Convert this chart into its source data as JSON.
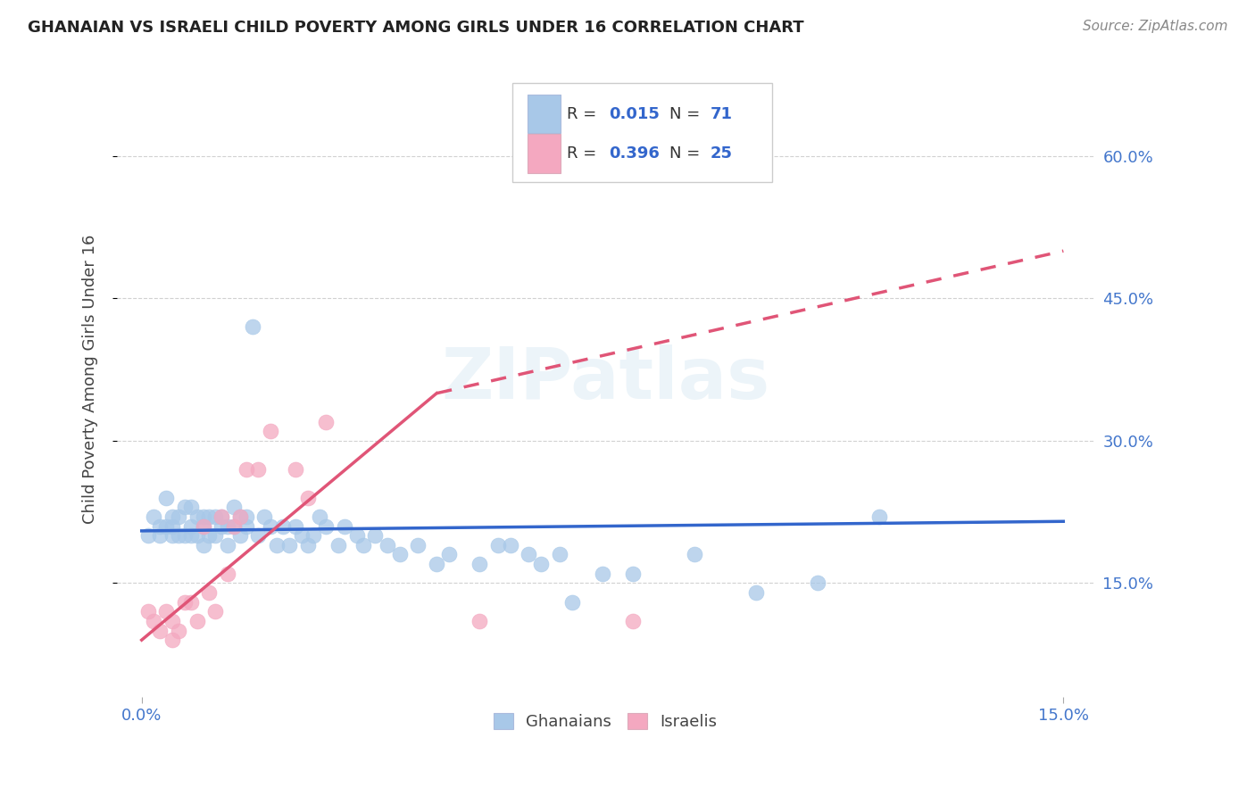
{
  "title": "GHANAIAN VS ISRAELI CHILD POVERTY AMONG GIRLS UNDER 16 CORRELATION CHART",
  "source": "Source: ZipAtlas.com",
  "ylabel": "Child Poverty Among Girls Under 16",
  "R_ghanaian": 0.015,
  "N_ghanaian": 71,
  "R_israeli": 0.396,
  "N_israeli": 25,
  "ghanaian_color": "#a8c8e8",
  "israeli_color": "#f4a8c0",
  "ghanaian_line_color": "#3366cc",
  "israeli_line_color": "#e05577",
  "watermark": "ZIPatlas",
  "xlim": [
    0.0,
    0.15
  ],
  "ylim": [
    0.05,
    0.7
  ],
  "yticks": [
    0.15,
    0.3,
    0.45,
    0.6
  ],
  "ytick_labels": [
    "15.0%",
    "30.0%",
    "45.0%",
    "60.0%"
  ],
  "xticks": [
    0.0,
    0.15
  ],
  "xtick_labels": [
    "0.0%",
    "15.0%"
  ],
  "ghanaians_x": [
    0.001,
    0.002,
    0.003,
    0.003,
    0.004,
    0.004,
    0.005,
    0.005,
    0.005,
    0.006,
    0.006,
    0.007,
    0.007,
    0.008,
    0.008,
    0.008,
    0.009,
    0.009,
    0.01,
    0.01,
    0.01,
    0.011,
    0.011,
    0.012,
    0.012,
    0.013,
    0.013,
    0.014,
    0.014,
    0.015,
    0.015,
    0.016,
    0.016,
    0.017,
    0.017,
    0.018,
    0.019,
    0.02,
    0.021,
    0.022,
    0.023,
    0.024,
    0.025,
    0.026,
    0.027,
    0.028,
    0.029,
    0.03,
    0.032,
    0.033,
    0.035,
    0.036,
    0.038,
    0.04,
    0.042,
    0.045,
    0.048,
    0.05,
    0.055,
    0.058,
    0.06,
    0.063,
    0.065,
    0.068,
    0.07,
    0.075,
    0.08,
    0.09,
    0.1,
    0.11,
    0.12
  ],
  "ghanaians_y": [
    0.2,
    0.22,
    0.2,
    0.21,
    0.21,
    0.24,
    0.2,
    0.21,
    0.22,
    0.2,
    0.22,
    0.2,
    0.23,
    0.2,
    0.21,
    0.23,
    0.2,
    0.22,
    0.19,
    0.21,
    0.22,
    0.2,
    0.22,
    0.2,
    0.22,
    0.22,
    0.21,
    0.19,
    0.21,
    0.23,
    0.21,
    0.22,
    0.2,
    0.22,
    0.21,
    0.42,
    0.2,
    0.22,
    0.21,
    0.19,
    0.21,
    0.19,
    0.21,
    0.2,
    0.19,
    0.2,
    0.22,
    0.21,
    0.19,
    0.21,
    0.2,
    0.19,
    0.2,
    0.19,
    0.18,
    0.19,
    0.17,
    0.18,
    0.17,
    0.19,
    0.19,
    0.18,
    0.17,
    0.18,
    0.13,
    0.16,
    0.16,
    0.18,
    0.14,
    0.15,
    0.22
  ],
  "israelis_x": [
    0.001,
    0.002,
    0.003,
    0.004,
    0.005,
    0.005,
    0.006,
    0.007,
    0.008,
    0.009,
    0.01,
    0.011,
    0.012,
    0.013,
    0.014,
    0.015,
    0.016,
    0.017,
    0.019,
    0.021,
    0.025,
    0.027,
    0.03,
    0.055,
    0.08
  ],
  "israelis_y": [
    0.12,
    0.11,
    0.1,
    0.12,
    0.09,
    0.11,
    0.1,
    0.13,
    0.13,
    0.11,
    0.21,
    0.14,
    0.12,
    0.22,
    0.16,
    0.21,
    0.22,
    0.27,
    0.27,
    0.31,
    0.27,
    0.24,
    0.32,
    0.11,
    0.11
  ],
  "gh_trendline_x0": 0.0,
  "gh_trendline_x1": 0.15,
  "gh_trendline_y0": 0.205,
  "gh_trendline_y1": 0.215,
  "is_trendline_x0": 0.0,
  "is_trendline_xsolid": 0.048,
  "is_trendline_x1": 0.15,
  "is_trendline_y0": 0.09,
  "is_trendline_ysolid": 0.35,
  "is_trendline_y1": 0.5
}
